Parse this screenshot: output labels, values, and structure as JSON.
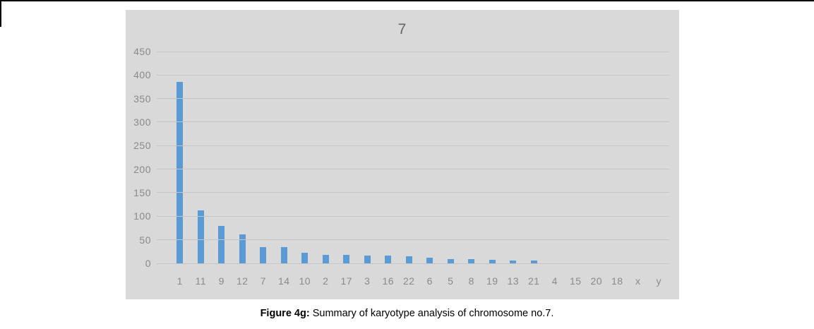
{
  "chart_data": {
    "type": "bar",
    "title": "7",
    "categories": [
      "1",
      "11",
      "9",
      "12",
      "7",
      "14",
      "10",
      "2",
      "17",
      "3",
      "16",
      "22",
      "6",
      "5",
      "8",
      "19",
      "13",
      "21",
      "4",
      "15",
      "20",
      "18",
      "x",
      "y"
    ],
    "values": [
      385,
      112,
      80,
      62,
      35,
      35,
      22,
      18,
      18,
      17,
      16,
      15,
      12,
      9,
      9,
      7,
      6,
      6,
      0,
      0,
      0,
      0,
      0,
      0
    ],
    "ylim": [
      0,
      450
    ],
    "yticks": [
      450,
      400,
      350,
      300,
      250,
      200,
      150,
      100,
      50,
      0
    ],
    "grid": true,
    "legend": false,
    "xlabel": "",
    "ylabel": "",
    "bar_color": "#5b9bd5",
    "plot_bg": "#d9d9d9"
  },
  "caption": {
    "label": "Figure 4g:",
    "text": "Summary of karyotype analysis of chromosome no.7."
  }
}
